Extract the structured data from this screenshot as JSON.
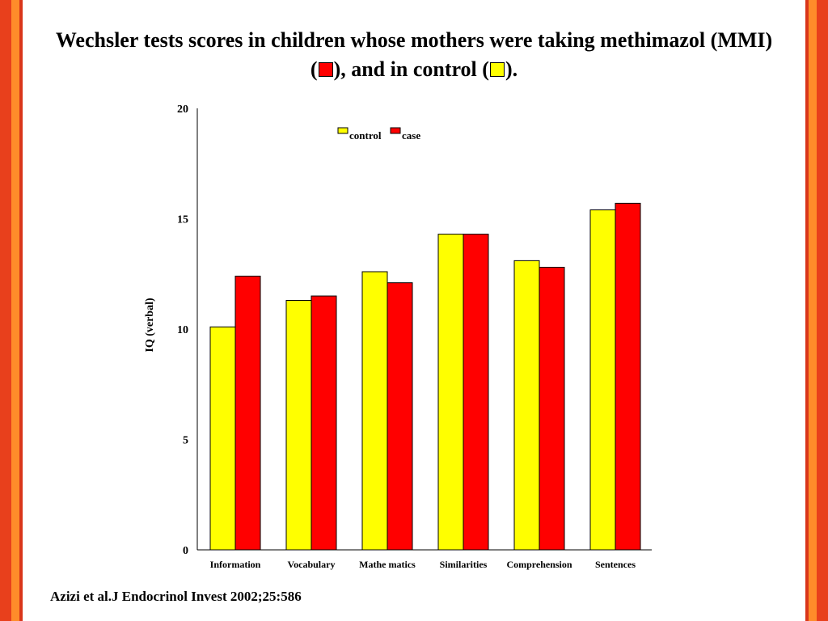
{
  "title": {
    "line1": "Wechsler tests scores in children whose mothers were taking methimazol (MMI)",
    "line2_open": "(",
    "line2_mid": "), and in control (",
    "line2_close": ")."
  },
  "citation": "Azizi et al.J Endocrinol Invest 2002;25:586",
  "colors": {
    "control": "#ffff00",
    "case": "#ff0000",
    "stripe_dark": "#e8401c",
    "stripe_light": "#ff8c2a"
  },
  "chart_data": {
    "type": "bar",
    "title": "",
    "xlabel": "",
    "ylabel": "IQ (verbal)",
    "ylim": [
      0,
      20
    ],
    "yticks": [
      0,
      5,
      10,
      15,
      20
    ],
    "categories": [
      "Information",
      "Vocabulary",
      "Mathe matics",
      "Similarities",
      "Comprehension",
      "Sentences"
    ],
    "series": [
      {
        "name": "control",
        "color": "#ffff00",
        "values": [
          10.1,
          11.3,
          12.6,
          14.3,
          13.1,
          15.4
        ]
      },
      {
        "name": "case",
        "color": "#ff0000",
        "values": [
          12.4,
          11.5,
          12.1,
          14.3,
          12.8,
          15.7
        ]
      }
    ],
    "legend": "top-center",
    "grid": false
  }
}
